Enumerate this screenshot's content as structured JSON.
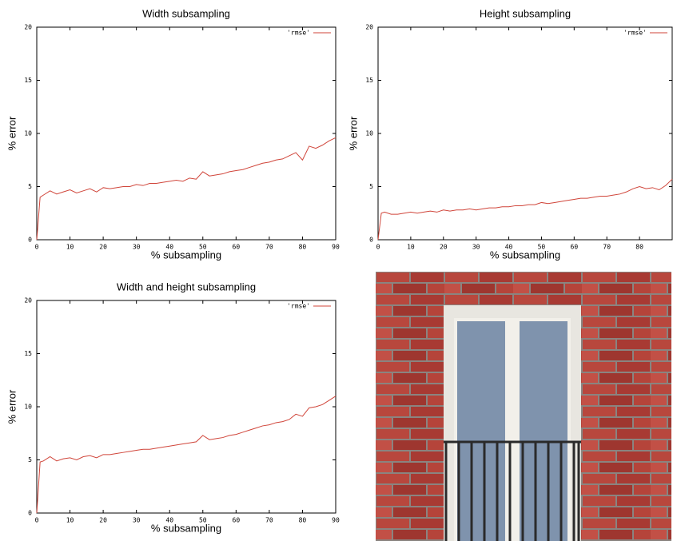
{
  "chart_data": [
    {
      "type": "line",
      "title": "Width subsampling",
      "xlabel": "% subsampling",
      "ylabel": "% error",
      "x": [
        0,
        1,
        2,
        4,
        6,
        8,
        10,
        12,
        14,
        16,
        18,
        20,
        22,
        24,
        26,
        28,
        30,
        32,
        34,
        36,
        38,
        40,
        42,
        44,
        46,
        48,
        50,
        52,
        54,
        56,
        58,
        60,
        62,
        64,
        66,
        68,
        70,
        72,
        74,
        76,
        78,
        80,
        82,
        84,
        86,
        88,
        90
      ],
      "series": [
        {
          "name": "'rmse'",
          "color": "#d0453a",
          "values": [
            0,
            4.0,
            4.2,
            4.6,
            4.3,
            4.5,
            4.7,
            4.4,
            4.6,
            4.8,
            4.5,
            4.9,
            4.8,
            4.9,
            5.0,
            5.0,
            5.2,
            5.1,
            5.3,
            5.3,
            5.4,
            5.5,
            5.6,
            5.5,
            5.8,
            5.7,
            6.4,
            6.0,
            6.1,
            6.2,
            6.4,
            6.5,
            6.6,
            6.8,
            7.0,
            7.2,
            7.3,
            7.5,
            7.6,
            7.9,
            8.2,
            7.5,
            8.8,
            8.6,
            8.9,
            9.3,
            9.6
          ]
        }
      ],
      "xlim": [
        0,
        90
      ],
      "xticks": [
        0,
        10,
        20,
        30,
        40,
        50,
        60,
        70,
        80,
        90
      ],
      "ylim": [
        0,
        20
      ],
      "yticks": [
        0,
        5,
        10,
        15,
        20
      ],
      "legend": "upper right"
    },
    {
      "type": "line",
      "title": "Height subsampling",
      "xlabel": "% subsampling",
      "ylabel": "% error",
      "x": [
        0,
        1,
        2,
        4,
        6,
        8,
        10,
        12,
        14,
        16,
        18,
        20,
        22,
        24,
        26,
        28,
        30,
        32,
        34,
        36,
        38,
        40,
        42,
        44,
        46,
        48,
        50,
        52,
        54,
        56,
        58,
        60,
        62,
        64,
        66,
        68,
        70,
        72,
        74,
        76,
        78,
        80,
        82,
        84,
        86,
        88,
        90
      ],
      "series": [
        {
          "name": "'rmse'",
          "color": "#d0453a",
          "values": [
            0,
            2.5,
            2.6,
            2.4,
            2.4,
            2.5,
            2.6,
            2.5,
            2.6,
            2.7,
            2.6,
            2.8,
            2.7,
            2.8,
            2.8,
            2.9,
            2.8,
            2.9,
            3.0,
            3.0,
            3.1,
            3.1,
            3.2,
            3.2,
            3.3,
            3.3,
            3.5,
            3.4,
            3.5,
            3.6,
            3.7,
            3.8,
            3.9,
            3.9,
            4.0,
            4.1,
            4.1,
            4.2,
            4.3,
            4.5,
            4.8,
            5.0,
            4.8,
            4.9,
            4.7,
            5.1,
            5.7
          ]
        }
      ],
      "xlim": [
        0,
        90
      ],
      "xticks": [
        0,
        10,
        20,
        30,
        40,
        50,
        60,
        70,
        80
      ],
      "ylim": [
        0,
        20
      ],
      "yticks": [
        0,
        5,
        10,
        15,
        20
      ],
      "legend": "upper right"
    },
    {
      "type": "line",
      "title": "Width and height subsampling",
      "xlabel": "% subsampling",
      "ylabel": "% error",
      "x": [
        0,
        1,
        2,
        4,
        6,
        8,
        10,
        12,
        14,
        16,
        18,
        20,
        22,
        24,
        26,
        28,
        30,
        32,
        34,
        36,
        38,
        40,
        42,
        44,
        46,
        48,
        50,
        52,
        54,
        56,
        58,
        60,
        62,
        64,
        66,
        68,
        70,
        72,
        74,
        76,
        78,
        80,
        82,
        84,
        86,
        88,
        90
      ],
      "series": [
        {
          "name": "'rmse'",
          "color": "#d0453a",
          "values": [
            0,
            4.8,
            4.9,
            5.3,
            4.9,
            5.1,
            5.2,
            5.0,
            5.3,
            5.4,
            5.2,
            5.5,
            5.5,
            5.6,
            5.7,
            5.8,
            5.9,
            6.0,
            6.0,
            6.1,
            6.2,
            6.3,
            6.4,
            6.5,
            6.6,
            6.7,
            7.3,
            6.9,
            7.0,
            7.1,
            7.3,
            7.4,
            7.6,
            7.8,
            8.0,
            8.2,
            8.3,
            8.5,
            8.6,
            8.8,
            9.3,
            9.1,
            9.9,
            10.0,
            10.2,
            10.6,
            11.0
          ]
        }
      ],
      "xlim": [
        0,
        90
      ],
      "xticks": [
        0,
        10,
        20,
        30,
        40,
        50,
        60,
        70,
        80,
        90
      ],
      "ylim": [
        0,
        20
      ],
      "yticks": [
        0,
        5,
        10,
        15,
        20
      ],
      "legend": "upper right"
    }
  ]
}
